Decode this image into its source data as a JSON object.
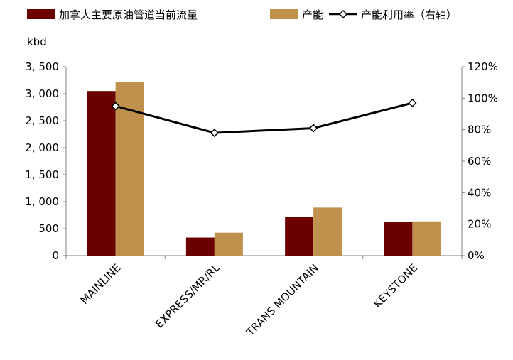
{
  "chart_data": {
    "type": "bar",
    "unit_label": "kbd",
    "categories": [
      "MAINLINE",
      "EXPRESS/MR/RL",
      "TRANS MOUNTAIN",
      "KEYSTONE"
    ],
    "series": [
      {
        "name": "加拿大主要原油管道当前流量",
        "type": "bar",
        "axis": "left",
        "color": "#6b0000",
        "values": [
          3050,
          335,
          720,
          620
        ]
      },
      {
        "name": "产能",
        "type": "bar",
        "axis": "left",
        "color": "#c0904d",
        "values": [
          3215,
          425,
          890,
          635
        ]
      },
      {
        "name": "产能利用率（右轴）",
        "type": "line",
        "axis": "right",
        "color": "#000000",
        "values": [
          95,
          78,
          81,
          97
        ]
      }
    ],
    "y_left": {
      "min": 0,
      "max": 3500,
      "ticks": [
        0,
        500,
        1000,
        1500,
        2000,
        2500,
        3000,
        3500
      ],
      "tick_labels": [
        "0",
        "500",
        "1, 000",
        "1, 500",
        "2, 000",
        "2, 500",
        "3, 000",
        "3, 500"
      ]
    },
    "y_right": {
      "min": 0,
      "max": 120,
      "ticks": [
        0,
        20,
        40,
        60,
        80,
        100,
        120
      ],
      "tick_labels": [
        "0%",
        "20%",
        "40%",
        "60%",
        "80%",
        "100%",
        "120%"
      ]
    },
    "grid": false,
    "legend_position": "top"
  }
}
